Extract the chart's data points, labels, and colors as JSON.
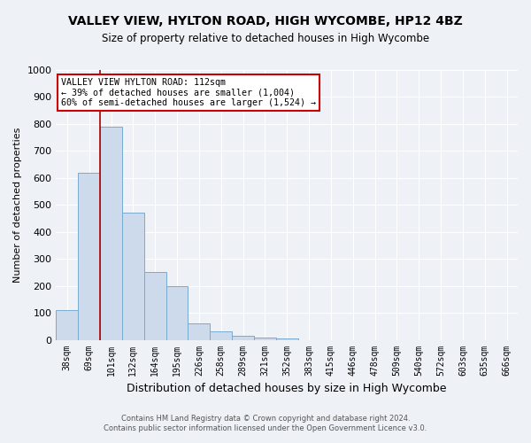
{
  "title": "VALLEY VIEW, HYLTON ROAD, HIGH WYCOMBE, HP12 4BZ",
  "subtitle": "Size of property relative to detached houses in High Wycombe",
  "xlabel": "Distribution of detached houses by size in High Wycombe",
  "ylabel": "Number of detached properties",
  "footer_line1": "Contains HM Land Registry data © Crown copyright and database right 2024.",
  "footer_line2": "Contains public sector information licensed under the Open Government Licence v3.0.",
  "bin_labels": [
    "38sqm",
    "69sqm",
    "101sqm",
    "132sqm",
    "164sqm",
    "195sqm",
    "226sqm",
    "258sqm",
    "289sqm",
    "321sqm",
    "352sqm",
    "383sqm",
    "415sqm",
    "446sqm",
    "478sqm",
    "509sqm",
    "540sqm",
    "572sqm",
    "603sqm",
    "635sqm",
    "666sqm"
  ],
  "bar_values": [
    110,
    620,
    790,
    470,
    250,
    200,
    60,
    30,
    15,
    10,
    5,
    0,
    0,
    0,
    0,
    0,
    0,
    0,
    0,
    0,
    0
  ],
  "bar_color": "#ccdaeb",
  "bar_edge_color": "#7aaad0",
  "property_line_label": "VALLEY VIEW HYLTON ROAD: 112sqm",
  "annotation_line1": "← 39% of detached houses are smaller (1,004)",
  "annotation_line2": "60% of semi-detached houses are larger (1,524) →",
  "annotation_box_color": "#ffffff",
  "annotation_box_edge": "#cc0000",
  "vline_color": "#aa0000",
  "vline_x": 1.5,
  "ylim": [
    0,
    1000
  ],
  "yticks": [
    0,
    100,
    200,
    300,
    400,
    500,
    600,
    700,
    800,
    900,
    1000
  ],
  "background_color": "#eef2f7",
  "grid_color": "#ffffff"
}
